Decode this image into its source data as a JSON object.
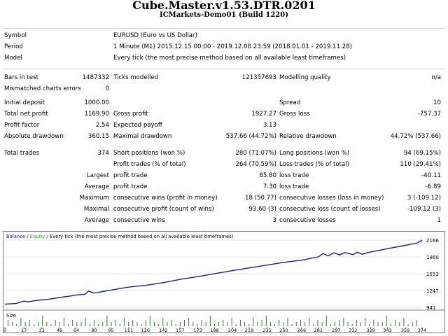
{
  "header": {
    "title": "Cube.Master.v1.53.DTR.0201",
    "subtitle": "ICMarkets-Demo01 (Build 1220)"
  },
  "info": {
    "symbol_label": "Symbol",
    "symbol_value": "EURUSD (Euro vs US Dollar)",
    "period_label": "Period",
    "period_value": "1 Minute (M1) 2015.12.15 00:00 - 2019.12.08 23:59 (2018.01.01 - 2019.11.28)",
    "model_label": "Model",
    "model_value": "Every tick (the most precise method based on all available least timeframes)"
  },
  "rows": [
    {
      "l1": "Bars in test",
      "v1": "1487332",
      "l2": "Ticks modelled",
      "v2": "121357693",
      "l3": "Modelling quality",
      "v3": "n/a"
    },
    {
      "l1": "Mismatched charts errors",
      "v1": "0",
      "l2": "",
      "v2": "",
      "l3": "",
      "v3": ""
    },
    {
      "l1": "Initial deposit",
      "v1": "1000.00",
      "l2": "",
      "v2": "",
      "l3": "Spread",
      "v3": "10"
    },
    {
      "l1": "Total net profit",
      "v1": "1169.90",
      "l2": "Gross profit",
      "v2": "1927.27",
      "l3": "Gross loss",
      "v3": "-757.37"
    },
    {
      "l1": "Profit factor",
      "v1": "2.54",
      "l2": "Expected payoff",
      "v2": "3.13",
      "l3": "",
      "v3": ""
    },
    {
      "l1": "Absolute drawdown",
      "v1": "360.15",
      "l2": "Maximal drawdown",
      "v2": "537.66 (44.72%)",
      "l3": "Relative drawdown",
      "v3": "44.72% (537.66)"
    },
    {
      "l1": "Total trades",
      "v1": "374",
      "l2": "Short positions (won %)",
      "v2": "280 (71.07%)",
      "l3": "Long positions (won %)",
      "v3": "94 (69.15%)"
    },
    {
      "l1": "",
      "v1": "",
      "l2": "Profit trades (% of total)",
      "v2": "264 (70.59%)",
      "l3": "Loss trades (% of total)",
      "v3": "110 (29.41%)"
    },
    {
      "l1": "Largest",
      "v1": "",
      "l2": "profit trade",
      "v2": "85.80",
      "l3": "loss trade",
      "v3": "-40.11"
    },
    {
      "l1": "Average",
      "v1": "",
      "l2": "profit trade",
      "v2": "7.30",
      "l3": "loss trade",
      "v3": "-6.89"
    },
    {
      "l1": "Maximum",
      "v1": "",
      "l2": "consecutive wins (profit in money)",
      "v2": "18 (50.77)",
      "l3": "consecutive losses (loss in money)",
      "v3": "3 (-109.12)"
    },
    {
      "l1": "Maximal",
      "v1": "",
      "l2": "consecutive profit (count of wins)",
      "v2": "93.60 (3)",
      "l3": "consecutive loss (count of losses)",
      "v3": "-109.12 (3)"
    },
    {
      "l1": "Average",
      "v1": "",
      "l2": "consecutive wins",
      "v2": "3",
      "l3": "consecutive losses",
      "v3": "1"
    }
  ],
  "chart_legend": {
    "balance": "Balance",
    "slash": " / ",
    "equity": "Equity",
    "rest": " / Every tick (the most precise method based on all available least timeframes)"
  },
  "size_label": "Size",
  "colors": {
    "balance": "#1a237e",
    "equity": "#2e7d32",
    "volume": "#2e7d32",
    "equity_legend": "#2e9e2e"
  },
  "chart_data": {
    "type": "line",
    "title": "",
    "ylabel": "",
    "y_ticks": [
      2166,
      1860,
      1553,
      1247,
      941
    ],
    "ylim": [
      941,
      2166
    ],
    "x_ticks": [
      0,
      17,
      33,
      49,
      64,
      80,
      95,
      111,
      126,
      142,
      157,
      173,
      188,
      204,
      219,
      235,
      250,
      266,
      281,
      297,
      312,
      328,
      343,
      359,
      374
    ],
    "xlim": [
      0,
      374
    ],
    "series": [
      {
        "name": "Balance",
        "x": [
          0,
          10,
          17,
          20,
          30,
          40,
          49,
          60,
          64,
          72,
          75,
          80,
          95,
          111,
          126,
          142,
          157,
          173,
          188,
          204,
          219,
          235,
          250,
          266,
          281,
          285,
          290,
          295,
          300,
          305,
          312,
          316,
          320,
          328,
          343,
          359,
          370,
          374
        ],
        "y": [
          1000,
          1010,
          1055,
          1040,
          1070,
          1090,
          1120,
          1150,
          1165,
          1180,
          1235,
          1200,
          1255,
          1310,
          1340,
          1390,
          1450,
          1500,
          1555,
          1610,
          1660,
          1710,
          1760,
          1800,
          1860,
          1920,
          1880,
          1935,
          1895,
          1940,
          1900,
          1945,
          1910,
          1950,
          2010,
          2070,
          2115,
          2166
        ]
      }
    ],
    "volume_label": "Size",
    "volumes": [
      3,
      2,
      1,
      4,
      2,
      3,
      1,
      2,
      5,
      2,
      1,
      3,
      2,
      4,
      1,
      3,
      2,
      2,
      4,
      1,
      3,
      1,
      2,
      5,
      2,
      3,
      1,
      4,
      2,
      3,
      2,
      1,
      3,
      5,
      2,
      1,
      4,
      2,
      3,
      1,
      2,
      3,
      4,
      2,
      1,
      3,
      2,
      5,
      1,
      2,
      3,
      2,
      4,
      1,
      3,
      2,
      1,
      4,
      2,
      3,
      5,
      2,
      1,
      3,
      2,
      4,
      1,
      2,
      3,
      2,
      4,
      1,
      3,
      2,
      5,
      1,
      2,
      3,
      4,
      2,
      1,
      3,
      2,
      4,
      1,
      3,
      2,
      2,
      5,
      1,
      3,
      2,
      4,
      1,
      2,
      3
    ]
  }
}
